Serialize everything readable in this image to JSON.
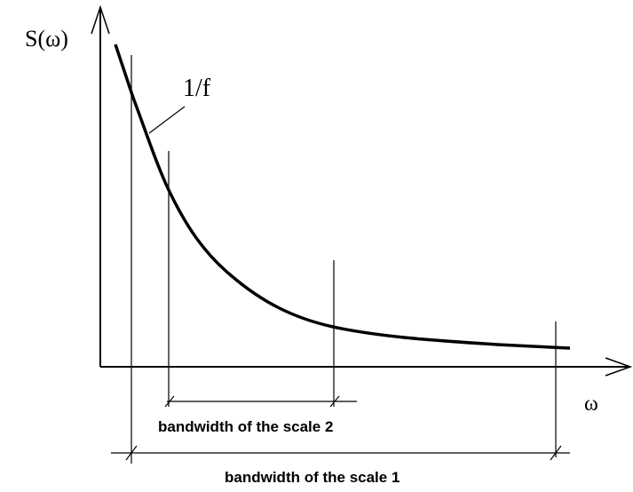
{
  "labels": {
    "y_axis": "S(ω)",
    "curve": "1/f",
    "x_axis": "ω",
    "bandwidth_2": "bandwidth of the scale 2",
    "bandwidth_1": "bandwidth of the scale 1"
  }
}
